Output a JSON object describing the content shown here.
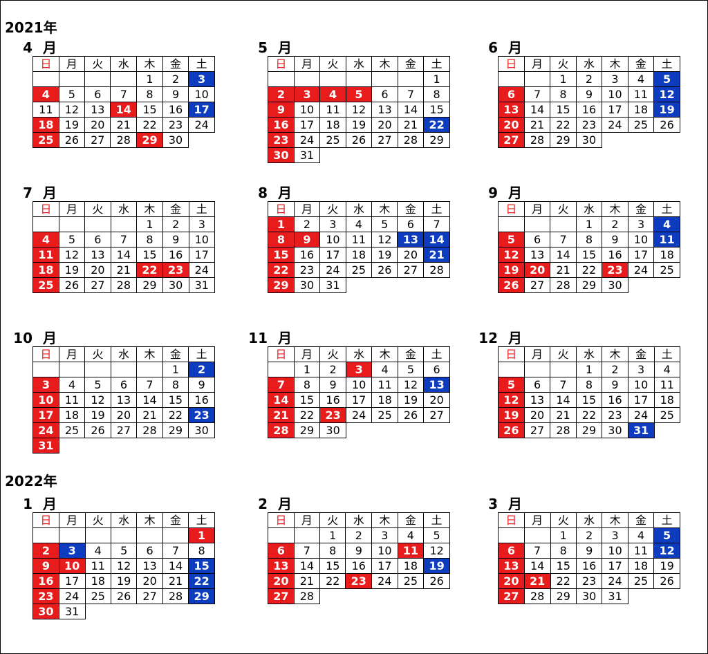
{
  "colors": {
    "holiday_red": "#e81c1c",
    "saturday_blue": "#0d3cbf",
    "weekday_header_red": "#e81c1c"
  },
  "weekday_headers": [
    "日",
    "月",
    "火",
    "水",
    "木",
    "金",
    "土"
  ],
  "month_suffix": "月",
  "years": [
    {
      "label": "2021年",
      "months": [
        {
          "number": "4",
          "start_dow": 4,
          "days": 30,
          "red": [
            4,
            14,
            18,
            25,
            29
          ],
          "blue": [
            3,
            17
          ]
        },
        {
          "number": "5",
          "start_dow": 6,
          "days": 31,
          "red": [
            2,
            3,
            4,
            5,
            9,
            16,
            23,
            30
          ],
          "blue": [
            22
          ]
        },
        {
          "number": "6",
          "start_dow": 2,
          "days": 30,
          "red": [
            6,
            13,
            20,
            27
          ],
          "blue": [
            5,
            12,
            19
          ]
        },
        {
          "number": "7",
          "start_dow": 4,
          "days": 31,
          "red": [
            4,
            11,
            18,
            22,
            23,
            25
          ],
          "blue": []
        },
        {
          "number": "8",
          "start_dow": 0,
          "days": 31,
          "red": [
            1,
            8,
            9,
            15,
            22,
            29
          ],
          "blue": [
            13,
            14,
            21
          ]
        },
        {
          "number": "9",
          "start_dow": 3,
          "days": 30,
          "red": [
            5,
            12,
            19,
            20,
            23,
            26
          ],
          "blue": [
            4,
            11
          ]
        },
        {
          "number": "10",
          "start_dow": 5,
          "days": 31,
          "red": [
            3,
            10,
            17,
            24,
            31
          ],
          "blue": [
            2,
            23
          ]
        },
        {
          "number": "11",
          "start_dow": 1,
          "days": 30,
          "red": [
            3,
            7,
            14,
            21,
            23,
            28
          ],
          "blue": [
            13
          ]
        },
        {
          "number": "12",
          "start_dow": 3,
          "days": 31,
          "red": [
            5,
            12,
            19,
            26
          ],
          "blue": [
            31
          ]
        }
      ]
    },
    {
      "label": "2022年",
      "months": [
        {
          "number": "1",
          "start_dow": 6,
          "days": 31,
          "red": [
            1,
            2,
            9,
            10,
            16,
            23,
            30
          ],
          "blue": [
            3,
            15,
            22,
            29
          ]
        },
        {
          "number": "2",
          "start_dow": 2,
          "days": 28,
          "red": [
            6,
            11,
            13,
            20,
            23,
            27
          ],
          "blue": [
            19
          ]
        },
        {
          "number": "3",
          "start_dow": 2,
          "days": 31,
          "red": [
            6,
            13,
            20,
            21,
            27
          ],
          "blue": [
            5,
            12
          ]
        }
      ]
    }
  ]
}
